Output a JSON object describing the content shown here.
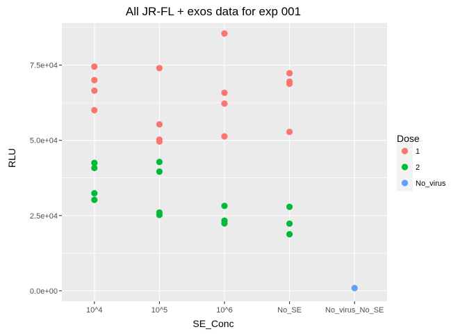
{
  "chart_data": {
    "type": "scatter",
    "title": "All JR-FL + exos data for exp 001",
    "xlabel": "SE_Conc",
    "ylabel": "RLU",
    "categories": [
      "10^4",
      "10^5",
      "10^6",
      "No_SE",
      "No_virus_No_SE"
    ],
    "y_ticks": [
      0,
      25000,
      50000,
      75000
    ],
    "y_tick_labels": [
      "0.0e+00",
      "2.5e+04",
      "5.0e+04",
      "7.5e+04"
    ],
    "ylim": [
      -3500,
      89000
    ],
    "grid": true,
    "legend": {
      "title": "Dose",
      "position": "right",
      "entries": [
        "1",
        "2",
        "No_virus"
      ]
    },
    "series": [
      {
        "name": "1",
        "color": "#F8766D",
        "points": [
          {
            "x": "10^4",
            "y": 74500
          },
          {
            "x": "10^4",
            "y": 70000
          },
          {
            "x": "10^4",
            "y": 66500
          },
          {
            "x": "10^4",
            "y": 60000
          },
          {
            "x": "10^5",
            "y": 74000
          },
          {
            "x": "10^5",
            "y": 55300
          },
          {
            "x": "10^5",
            "y": 50200
          },
          {
            "x": "10^5",
            "y": 49600
          },
          {
            "x": "10^6",
            "y": 85500
          },
          {
            "x": "10^6",
            "y": 65800
          },
          {
            "x": "10^6",
            "y": 62200
          },
          {
            "x": "10^6",
            "y": 51300
          },
          {
            "x": "No_SE",
            "y": 72300
          },
          {
            "x": "No_SE",
            "y": 69500
          },
          {
            "x": "No_SE",
            "y": 68800
          },
          {
            "x": "No_SE",
            "y": 52800
          }
        ]
      },
      {
        "name": "2",
        "color": "#00BA38",
        "points": [
          {
            "x": "10^4",
            "y": 42500
          },
          {
            "x": "10^4",
            "y": 40800
          },
          {
            "x": "10^4",
            "y": 32400
          },
          {
            "x": "10^4",
            "y": 30200
          },
          {
            "x": "10^5",
            "y": 42800
          },
          {
            "x": "10^5",
            "y": 39600
          },
          {
            "x": "10^5",
            "y": 26000
          },
          {
            "x": "10^5",
            "y": 25200
          },
          {
            "x": "10^6",
            "y": 28200
          },
          {
            "x": "10^6",
            "y": 23300
          },
          {
            "x": "10^6",
            "y": 22400
          },
          {
            "x": "No_SE",
            "y": 27900
          },
          {
            "x": "No_SE",
            "y": 22300
          },
          {
            "x": "No_SE",
            "y": 18800
          }
        ]
      },
      {
        "name": "No_virus",
        "color": "#619CFF",
        "points": [
          {
            "x": "No_virus_No_SE",
            "y": 900
          }
        ]
      }
    ]
  }
}
